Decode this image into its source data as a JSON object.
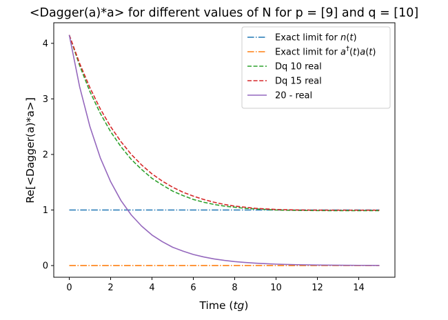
{
  "chart_data": {
    "type": "line",
    "title": "<Dagger(a)*a> for different values of N for p = [9] and q = [10]",
    "xlabel_prefix": "Time (",
    "xlabel_italic": "tg",
    "xlabel_suffix": ")",
    "ylabel": "Re[<Dagger(a)*a>]",
    "xlim": [
      -0.75,
      15.75
    ],
    "ylim": [
      -0.21,
      4.37
    ],
    "xticks": [
      0,
      2,
      4,
      6,
      8,
      10,
      12,
      14
    ],
    "yticks": [
      0,
      1,
      2,
      3,
      4
    ],
    "grid": false,
    "legend_position": "top-right",
    "series": [
      {
        "name": "Exact limit for n(t)",
        "legend_parts": [
          {
            "t": "Exact limit for ",
            "it": false
          },
          {
            "t": "n",
            "it": true
          },
          {
            "t": "(",
            "it": false
          },
          {
            "t": "t",
            "it": true
          },
          {
            "t": ")",
            "it": false
          }
        ],
        "color": "#1f77b4",
        "dash": "dashdot",
        "x": [
          0,
          15
        ],
        "y": [
          1.0,
          1.0
        ]
      },
      {
        "name": "Exact limit for a†(t)a(t)",
        "legend_parts": [
          {
            "t": "Exact limit for ",
            "it": false
          },
          {
            "t": "a",
            "it": true
          },
          {
            "t": "†",
            "it": false,
            "sup": true
          },
          {
            "t": "(",
            "it": false
          },
          {
            "t": "t",
            "it": true
          },
          {
            "t": ")",
            "it": false
          },
          {
            "t": "a",
            "it": true
          },
          {
            "t": "(",
            "it": false
          },
          {
            "t": "t",
            "it": true
          },
          {
            "t": ")",
            "it": false
          }
        ],
        "color": "#ff7f0e",
        "dash": "dashdot",
        "x": [
          0,
          15
        ],
        "y": [
          0.0,
          0.0
        ]
      },
      {
        "name": "Dq 10 real",
        "color": "#2ca02c",
        "dash": "dashed",
        "x": [
          0,
          0.5,
          1,
          1.5,
          2,
          2.5,
          3,
          3.5,
          4,
          4.5,
          5,
          5.5,
          6,
          6.5,
          7,
          7.5,
          8,
          8.5,
          9,
          9.5,
          10,
          10.5,
          11,
          11.5,
          12,
          12.5,
          13,
          13.5,
          14,
          14.5,
          15
        ],
        "y": [
          4.15,
          3.6,
          3.13,
          2.74,
          2.41,
          2.14,
          1.91,
          1.73,
          1.57,
          1.45,
          1.34,
          1.26,
          1.19,
          1.14,
          1.1,
          1.07,
          1.05,
          1.03,
          1.02,
          1.01,
          1.0,
          0.996,
          0.993,
          0.991,
          0.99,
          0.989,
          0.989,
          0.988,
          0.988,
          0.988,
          0.988
        ]
      },
      {
        "name": "Dq 15 real",
        "color": "#d62728",
        "dash": "dashed",
        "x": [
          0,
          0.5,
          1,
          1.5,
          2,
          2.5,
          3,
          3.5,
          4,
          4.5,
          5,
          5.5,
          6,
          6.5,
          7,
          7.5,
          8,
          8.5,
          9,
          9.5,
          10,
          10.5,
          11,
          11.5,
          12,
          12.5,
          13,
          13.5,
          14,
          14.5,
          15
        ],
        "y": [
          4.15,
          3.64,
          3.2,
          2.82,
          2.5,
          2.23,
          2.0,
          1.81,
          1.65,
          1.52,
          1.41,
          1.32,
          1.25,
          1.19,
          1.14,
          1.1,
          1.07,
          1.05,
          1.03,
          1.02,
          1.01,
          1.005,
          1.001,
          0.999,
          0.998,
          0.997,
          0.997,
          0.997,
          0.997,
          0.997,
          0.997
        ]
      },
      {
        "name": "20 - real",
        "color": "#9467bd",
        "dash": "solid",
        "x": [
          0,
          0.5,
          1,
          1.5,
          2,
          2.5,
          3,
          3.5,
          4,
          4.5,
          5,
          5.5,
          6,
          6.5,
          7,
          7.5,
          8,
          8.5,
          9,
          9.5,
          10,
          10.5,
          11,
          11.5,
          12,
          12.5,
          13,
          13.5,
          14,
          14.5,
          15
        ],
        "y": [
          4.15,
          3.22,
          2.5,
          1.94,
          1.51,
          1.17,
          0.91,
          0.71,
          0.55,
          0.43,
          0.33,
          0.26,
          0.2,
          0.155,
          0.12,
          0.093,
          0.072,
          0.056,
          0.044,
          0.034,
          0.026,
          0.02,
          0.016,
          0.012,
          0.01,
          0.008,
          0.006,
          0.005,
          0.004,
          0.003,
          0.002
        ]
      }
    ]
  }
}
